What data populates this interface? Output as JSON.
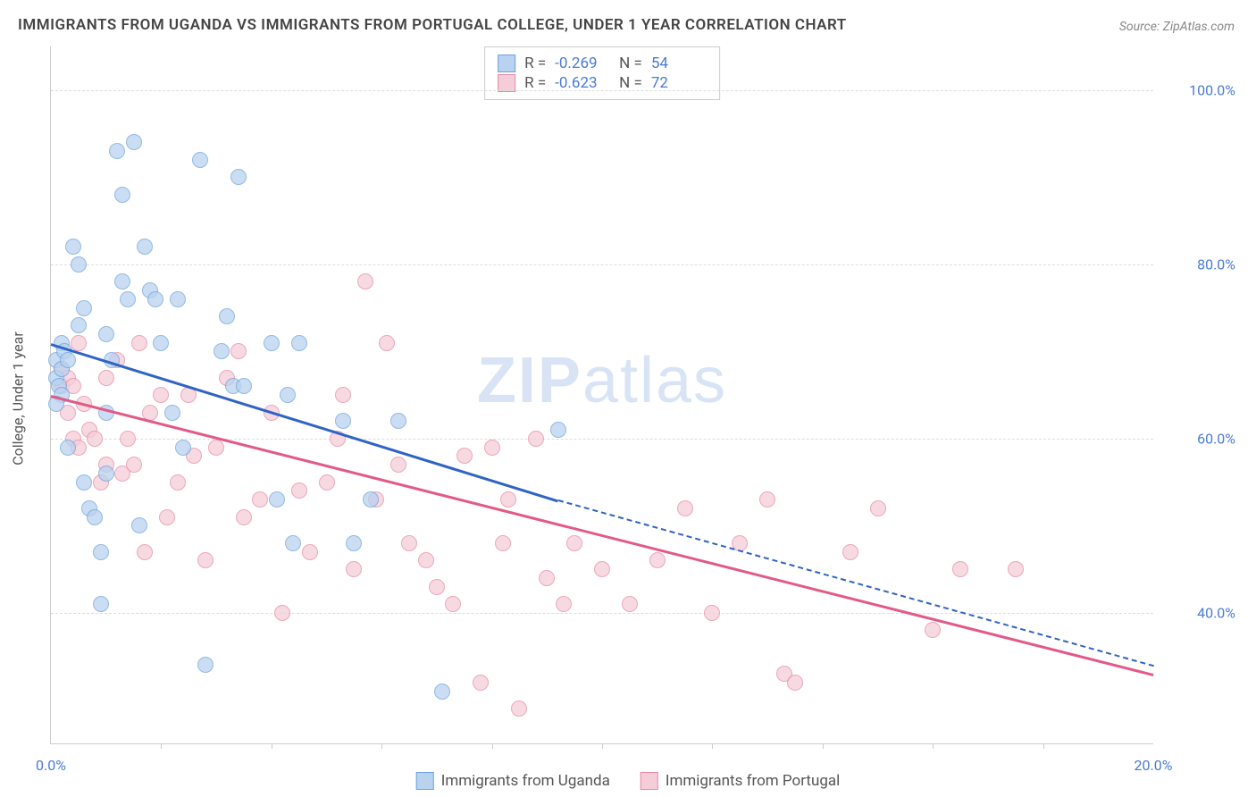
{
  "title": "IMMIGRANTS FROM UGANDA VS IMMIGRANTS FROM PORTUGAL COLLEGE, UNDER 1 YEAR CORRELATION CHART",
  "source": "Source: ZipAtlas.com",
  "ylabel": "College, Under 1 year",
  "watermark_a": "ZIP",
  "watermark_b": "atlas",
  "chart": {
    "type": "scatter",
    "xlim": [
      0,
      20
    ],
    "ylim": [
      25,
      105
    ],
    "x_ticks": [
      0,
      20
    ],
    "x_tick_labels": [
      "0.0%",
      "20.0%"
    ],
    "x_minor_ticks": [
      2,
      4,
      6,
      8,
      10,
      12,
      14,
      16,
      18
    ],
    "y_ticks": [
      40,
      60,
      80,
      100
    ],
    "y_tick_labels": [
      "40.0%",
      "60.0%",
      "80.0%",
      "100.0%"
    ],
    "background_color": "#ffffff",
    "grid_color": "#dddddd",
    "marker_radius": 8,
    "marker_opacity": 0.75,
    "series": [
      {
        "name": "Immigrants from Uganda",
        "color_fill": "#b9d2ef",
        "color_stroke": "#6ea3de",
        "trend_color": "#2f63c4",
        "R": "-0.269",
        "N": "54",
        "trend": {
          "x1": 0,
          "y1": 71,
          "x2": 9.2,
          "y2": 53,
          "extrapolate_x2": 20,
          "extrapolate_y2": 34
        },
        "points": [
          [
            0.1,
            69
          ],
          [
            0.1,
            67
          ],
          [
            0.2,
            71
          ],
          [
            0.2,
            68
          ],
          [
            0.15,
            66
          ],
          [
            0.2,
            65
          ],
          [
            0.25,
            70
          ],
          [
            0.3,
            69
          ],
          [
            0.1,
            64
          ],
          [
            0.4,
            82
          ],
          [
            0.5,
            80
          ],
          [
            0.5,
            73
          ],
          [
            0.6,
            75
          ],
          [
            0.6,
            55
          ],
          [
            0.7,
            52
          ],
          [
            0.8,
            51
          ],
          [
            0.9,
            47
          ],
          [
            0.9,
            41
          ],
          [
            1.0,
            72
          ],
          [
            1.0,
            56
          ],
          [
            1.1,
            69
          ],
          [
            1.2,
            93
          ],
          [
            1.3,
            88
          ],
          [
            1.3,
            78
          ],
          [
            1.4,
            76
          ],
          [
            1.5,
            94
          ],
          [
            1.6,
            50
          ],
          [
            1.7,
            82
          ],
          [
            1.8,
            77
          ],
          [
            1.9,
            76
          ],
          [
            2.0,
            71
          ],
          [
            2.2,
            63
          ],
          [
            2.3,
            76
          ],
          [
            2.4,
            59
          ],
          [
            2.7,
            92
          ],
          [
            2.8,
            34
          ],
          [
            3.1,
            70
          ],
          [
            3.2,
            74
          ],
          [
            3.3,
            66
          ],
          [
            3.4,
            90
          ],
          [
            3.5,
            66
          ],
          [
            4.0,
            71
          ],
          [
            4.1,
            53
          ],
          [
            4.3,
            65
          ],
          [
            4.4,
            48
          ],
          [
            4.5,
            71
          ],
          [
            5.3,
            62
          ],
          [
            5.5,
            48
          ],
          [
            5.8,
            53
          ],
          [
            6.3,
            62
          ],
          [
            7.1,
            31
          ],
          [
            9.2,
            61
          ],
          [
            0.3,
            59
          ],
          [
            1.0,
            63
          ]
        ]
      },
      {
        "name": "Immigrants from Portugal",
        "color_fill": "#f5cdd8",
        "color_stroke": "#e68aa5",
        "trend_color": "#e15a88",
        "R": "-0.623",
        "N": "72",
        "trend": {
          "x1": 0,
          "y1": 65,
          "x2": 20,
          "y2": 33
        },
        "points": [
          [
            0.2,
            68
          ],
          [
            0.2,
            66
          ],
          [
            0.3,
            67
          ],
          [
            0.3,
            63
          ],
          [
            0.4,
            66
          ],
          [
            0.4,
            60
          ],
          [
            0.5,
            71
          ],
          [
            0.5,
            59
          ],
          [
            0.6,
            64
          ],
          [
            0.7,
            61
          ],
          [
            0.8,
            60
          ],
          [
            0.9,
            55
          ],
          [
            1.0,
            67
          ],
          [
            1.0,
            57
          ],
          [
            1.2,
            69
          ],
          [
            1.3,
            56
          ],
          [
            1.4,
            60
          ],
          [
            1.5,
            57
          ],
          [
            1.6,
            71
          ],
          [
            1.7,
            47
          ],
          [
            1.8,
            63
          ],
          [
            2.0,
            65
          ],
          [
            2.1,
            51
          ],
          [
            2.3,
            55
          ],
          [
            2.5,
            65
          ],
          [
            2.6,
            58
          ],
          [
            2.8,
            46
          ],
          [
            3.0,
            59
          ],
          [
            3.2,
            67
          ],
          [
            3.4,
            70
          ],
          [
            3.5,
            51
          ],
          [
            3.8,
            53
          ],
          [
            4.0,
            63
          ],
          [
            4.2,
            40
          ],
          [
            4.5,
            54
          ],
          [
            4.7,
            47
          ],
          [
            5.0,
            55
          ],
          [
            5.2,
            60
          ],
          [
            5.3,
            65
          ],
          [
            5.5,
            45
          ],
          [
            5.7,
            78
          ],
          [
            5.9,
            53
          ],
          [
            6.1,
            71
          ],
          [
            6.3,
            57
          ],
          [
            6.5,
            48
          ],
          [
            6.8,
            46
          ],
          [
            7.0,
            43
          ],
          [
            7.3,
            41
          ],
          [
            7.5,
            58
          ],
          [
            7.8,
            32
          ],
          [
            8.0,
            59
          ],
          [
            8.2,
            48
          ],
          [
            8.5,
            29
          ],
          [
            8.8,
            60
          ],
          [
            9.0,
            44
          ],
          [
            9.3,
            41
          ],
          [
            9.5,
            48
          ],
          [
            10.0,
            45
          ],
          [
            10.5,
            41
          ],
          [
            11.0,
            46
          ],
          [
            11.5,
            52
          ],
          [
            12.0,
            40
          ],
          [
            12.5,
            48
          ],
          [
            13.0,
            53
          ],
          [
            13.3,
            33
          ],
          [
            13.5,
            32
          ],
          [
            14.5,
            47
          ],
          [
            15.0,
            52
          ],
          [
            16.0,
            38
          ],
          [
            16.5,
            45
          ],
          [
            17.5,
            45
          ],
          [
            8.3,
            53
          ]
        ]
      }
    ]
  },
  "legend": {
    "uganda": "Immigrants from Uganda",
    "portugal": "Immigrants from Portugal"
  }
}
